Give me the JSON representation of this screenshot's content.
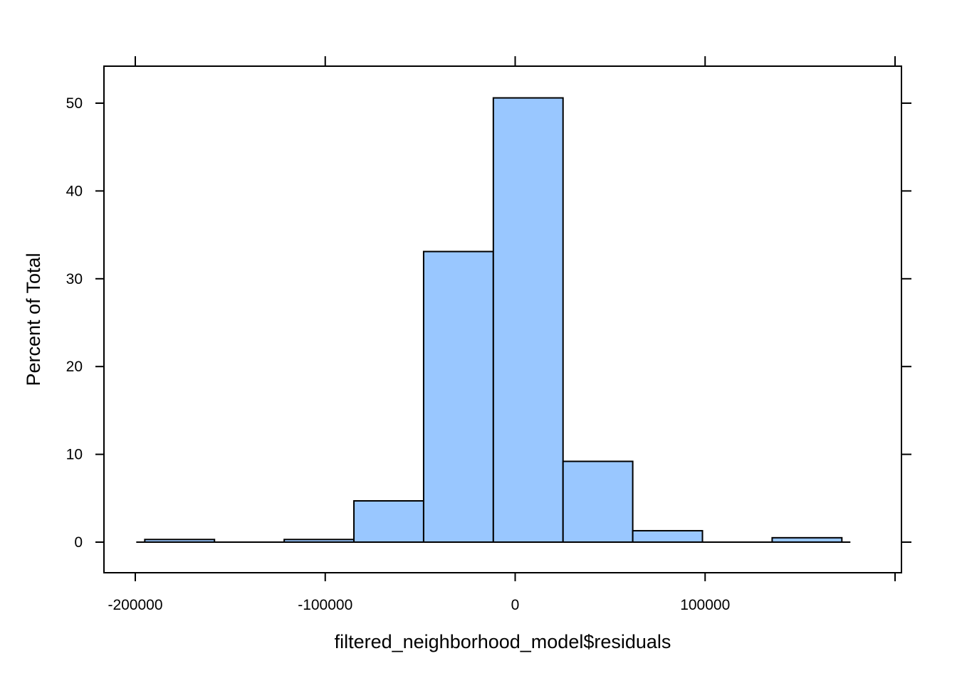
{
  "chart_data": {
    "type": "bar",
    "xlabel": "filtered_neighborhood_model$residuals",
    "ylabel": "Percent of Total",
    "xlim": [
      -200000,
      200000
    ],
    "ylim": [
      -3.5,
      54
    ],
    "x_ticks": [
      -200000,
      -100000,
      0,
      100000
    ],
    "x_tick_labels": [
      "-200000",
      "-100000",
      "0",
      "100000"
    ],
    "x_top_ticks": [
      -200000,
      -100000,
      0,
      100000,
      200000
    ],
    "y_ticks": [
      0,
      10,
      20,
      30,
      40,
      50
    ],
    "y_tick_labels": [
      "0",
      "10",
      "20",
      "30",
      "40",
      "50"
    ],
    "bin_edges": [
      -195000,
      -158300,
      -121600,
      -84900,
      -48200,
      -11500,
      25200,
      61900,
      98600,
      135300,
      172000
    ],
    "values": [
      0.3,
      0.0,
      0.3,
      4.7,
      33.1,
      50.6,
      9.2,
      1.3,
      0.0,
      0.5
    ],
    "grid": false,
    "bar_color": "#99c7ff",
    "edge_color": "#000000"
  }
}
